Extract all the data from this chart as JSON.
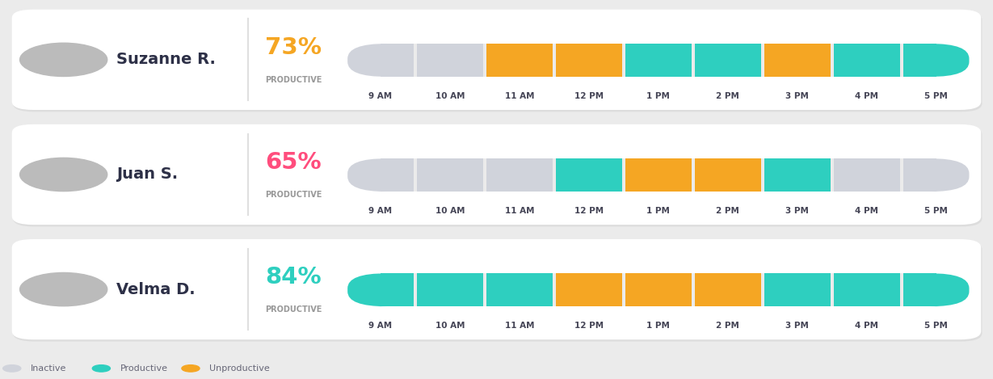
{
  "background": "#ebebeb",
  "card_color": "#ffffff",
  "people": [
    {
      "name": "Suzanne R.",
      "percent": "73%",
      "percent_color": "#f5a623",
      "slots": [
        "inactive",
        "inactive",
        "unproductive",
        "unproductive",
        "productive",
        "productive",
        "unproductive",
        "productive",
        "productive"
      ]
    },
    {
      "name": "Juan S.",
      "percent": "65%",
      "percent_color": "#ff4d7d",
      "slots": [
        "inactive",
        "inactive",
        "inactive",
        "productive",
        "unproductive",
        "unproductive",
        "productive",
        "inactive",
        "inactive"
      ]
    },
    {
      "name": "Velma D.",
      "percent": "84%",
      "percent_color": "#2ecfbf",
      "slots": [
        "productive",
        "productive",
        "productive",
        "unproductive",
        "unproductive",
        "unproductive",
        "productive",
        "productive",
        "productive"
      ]
    }
  ],
  "time_labels": [
    "9 AM",
    "10 AM",
    "11 AM",
    "12 PM",
    "1 PM",
    "2 PM",
    "3 PM",
    "4 PM",
    "5 PM"
  ],
  "colors": {
    "inactive": "#d0d3db",
    "productive": "#2ecfbf",
    "unproductive": "#f5a623"
  },
  "legend": [
    {
      "label": "Inactive",
      "color": "#d0d3db"
    },
    {
      "label": "Productive",
      "color": "#2ecfbf"
    },
    {
      "label": "Unproductive",
      "color": "#f5a623"
    }
  ]
}
